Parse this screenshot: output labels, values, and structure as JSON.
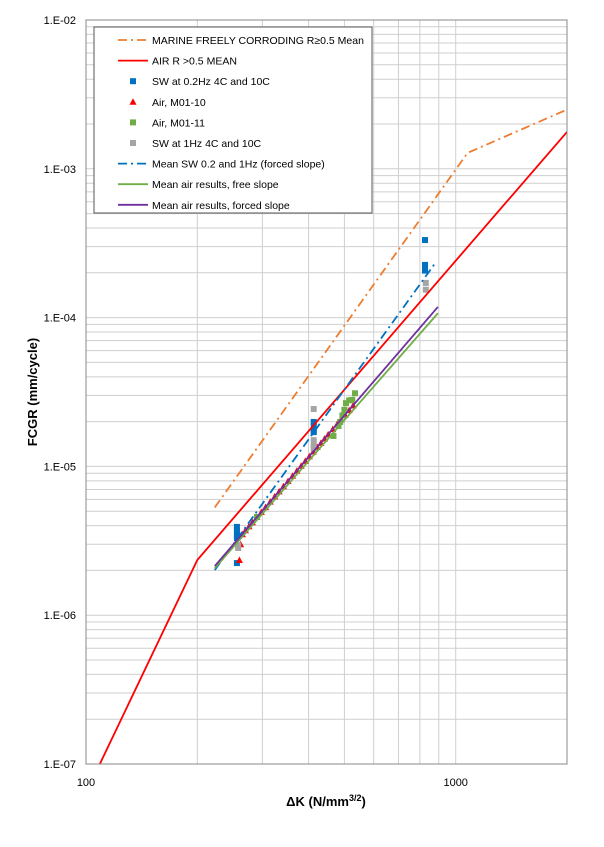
{
  "chart_data": {
    "type": "scatter",
    "title": "",
    "xlabel": "ΔK (N/mm",
    "xlabel_sup": "3/2",
    "xlabel_end": ")",
    "ylabel": "FCGR (mm/cycle)",
    "xscale": "log",
    "yscale": "log",
    "xlim": [
      100,
      2000
    ],
    "ylim": [
      1e-07,
      0.01
    ],
    "grid": true,
    "legend_position": "top-left",
    "x_tick_labels": [
      {
        "v": 100,
        "label": "100"
      },
      {
        "v": 1000,
        "label": "1000"
      }
    ],
    "y_tick_labels": [
      {
        "v": 0.01,
        "label": "1.E-02"
      },
      {
        "v": 0.001,
        "label": "1.E-03"
      },
      {
        "v": 0.0001,
        "label": "1.E-04"
      },
      {
        "v": 1e-05,
        "label": "1.E-05"
      },
      {
        "v": 1e-06,
        "label": "1.E-06"
      },
      {
        "v": 1e-07,
        "label": "1.E-07"
      }
    ],
    "series": [
      {
        "name": "MARINE FREELY CORRODING R≥0.5 Mean",
        "kind": "line",
        "style": "dashdot",
        "color": "#ED7D31",
        "x": [
          223,
          1077,
          2000
        ],
        "y": [
          5.3e-06,
          0.00128,
          0.0025
        ]
      },
      {
        "name": "AIR R >0.5 MEAN",
        "kind": "line",
        "style": "solid",
        "color": "#FF0000",
        "x": [
          109,
          200,
          2000
        ],
        "y": [
          1e-07,
          2.35e-06,
          0.00177
        ]
      },
      {
        "name": "SW at 0.2Hz 4C and 10C",
        "kind": "marker",
        "marker": "square",
        "color": "#0070C0",
        "x": [
          256,
          256,
          256,
          256,
          256,
          413,
          413,
          413,
          413,
          826,
          826,
          826,
          826
        ],
        "y": [
          3.92e-06,
          3.7e-06,
          3.45e-06,
          3.3e-06,
          2.24e-06,
          1.99e-05,
          1.87e-05,
          1.75e-05,
          1.7e-05,
          0.000332,
          0.000226,
          0.000216,
          0.000207
        ]
      },
      {
        "name": "Air, M01-10",
        "kind": "marker",
        "marker": "triangle",
        "color": "#FF0000",
        "x": [
          260,
          262,
          265,
          270,
          276,
          282,
          290,
          298,
          306,
          315,
          324,
          333,
          342,
          352,
          362,
          372,
          382,
          392,
          402,
          412,
          422,
          432,
          442,
          452,
          465,
          478,
          490,
          502,
          515,
          528
        ],
        "y": [
          2.35e-06,
          3e-06,
          3.5e-06,
          3.72e-06,
          3.96e-06,
          4.21e-06,
          4.57e-06,
          4.94e-06,
          5.33e-06,
          5.8e-06,
          6.29e-06,
          6.8e-06,
          7.35e-06,
          7.98e-06,
          8.66e-06,
          9.37e-06,
          1.01e-05,
          1.09e-05,
          1.17e-05,
          1.26e-05,
          1.35e-05,
          1.44e-05,
          1.54e-05,
          1.64e-05,
          1.78e-05,
          1.93e-05,
          2.07e-05,
          2.22e-05,
          2.39e-05,
          2.57e-05
        ]
      },
      {
        "name": "Air, M01-11",
        "kind": "marker",
        "marker": "square",
        "color": "#70AD47",
        "x": [
          290,
          467,
          482,
          487,
          494,
          500,
          505,
          515,
          525,
          534
        ],
        "y": [
          4.57e-06,
          1.6e-05,
          1.87e-05,
          1.99e-05,
          2.2e-05,
          2.4e-05,
          2.66e-05,
          2.78e-05,
          2.8e-05,
          3.1e-05
        ]
      },
      {
        "name": "SW at 1Hz 4C and 10C",
        "kind": "marker",
        "marker": "square",
        "color": "#A5A5A5",
        "x": [
          258,
          258,
          413,
          413,
          413,
          413,
          830,
          830
        ],
        "y": [
          2.83e-06,
          2.95e-06,
          2.43e-05,
          1.5e-05,
          1.38e-05,
          1.33e-05,
          0.000171,
          0.000154
        ]
      },
      {
        "name": "Mean SW 0.2 and 1Hz (forced slope)",
        "kind": "line",
        "style": "dashdot",
        "color": "#0070C0",
        "x": [
          223,
          884
        ],
        "y": [
          2.01e-06,
          0.000236
        ]
      },
      {
        "name": "Mean air results, free slope",
        "kind": "line",
        "style": "solid",
        "color": "#70AD47",
        "x": [
          223,
          895
        ],
        "y": [
          2.07e-06,
          0.000107
        ]
      },
      {
        "name": "Mean air results, forced slope",
        "kind": "line",
        "style": "solid",
        "color": "#7030A0",
        "x": [
          223,
          895
        ],
        "y": [
          2.14e-06,
          0.000118
        ]
      }
    ]
  }
}
